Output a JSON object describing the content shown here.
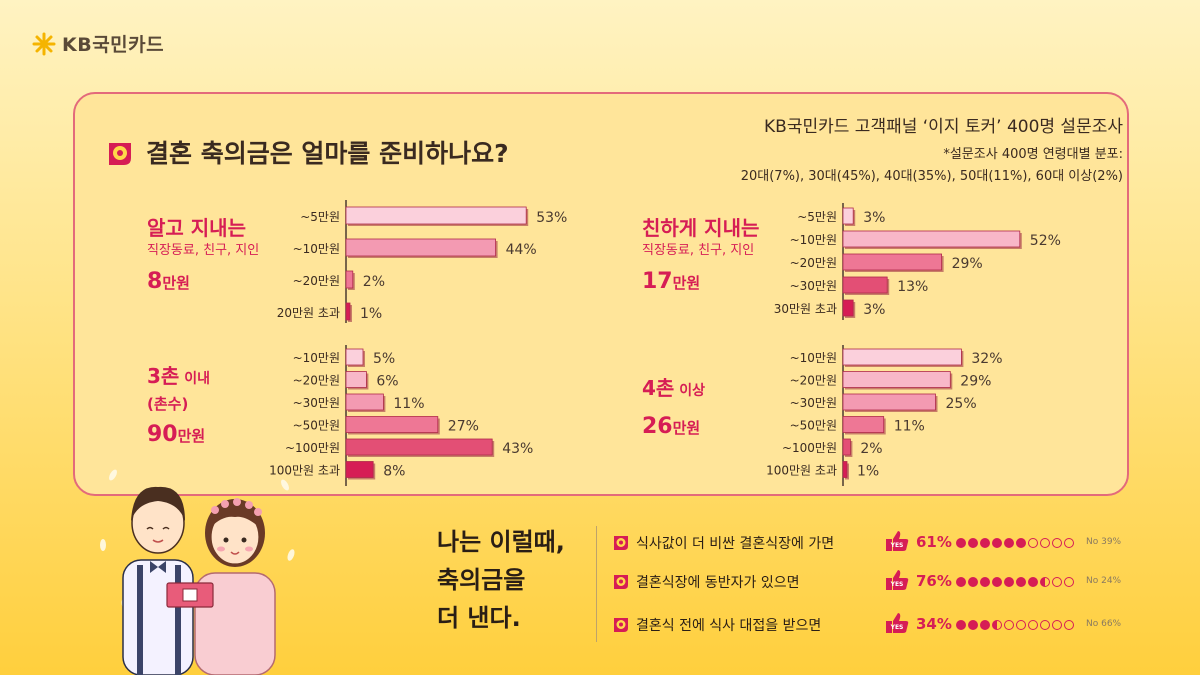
{
  "brand": {
    "name": "KB국민카드"
  },
  "header": {
    "title": "결혼 축의금은 얼마를 준비하나요?",
    "survey_title": "KB국민카드 고객패널 ‘이지 토커’ 400명 설문조사",
    "survey_note": "*설문조사 400명 연령대별 분포:",
    "survey_dist": "20대(7%), 30대(45%), 40대(35%), 50대(11%), 60대 이상(2%)"
  },
  "groups": [
    {
      "main": "알고 지내는",
      "sub": "직장동료, 친구, 지인",
      "amount": "8",
      "unit": "만원"
    },
    {
      "main": "친하게 지내는",
      "sub": "직장동료, 친구, 지인",
      "amount": "17",
      "unit": "만원"
    },
    {
      "main": "3촌",
      "main_small": " 이내",
      "sub": "(촌수)",
      "amount": "90",
      "unit": "만원"
    },
    {
      "main": "4촌",
      "main_small": " 이상",
      "sub": "",
      "amount": "26",
      "unit": "만원"
    }
  ],
  "chart_data": [
    {
      "type": "bar",
      "group": "알고 지내는 직장동료, 친구, 지인",
      "categories": [
        "~5만원",
        "~10만원",
        "~20만원",
        "20만원 초과"
      ],
      "values": [
        53,
        44,
        2,
        1
      ],
      "unit": "%"
    },
    {
      "type": "bar",
      "group": "친하게 지내는 직장동료, 친구, 지인",
      "categories": [
        "~5만원",
        "~10만원",
        "~20만원",
        "~30만원",
        "30만원 초과"
      ],
      "values": [
        3,
        52,
        29,
        13,
        3
      ],
      "unit": "%"
    },
    {
      "type": "bar",
      "group": "3촌 이내 (촌수)",
      "categories": [
        "~10만원",
        "~20만원",
        "~30만원",
        "~50만원",
        "~100만원",
        "100만원 초과"
      ],
      "values": [
        5,
        6,
        11,
        27,
        43,
        8
      ],
      "unit": "%"
    },
    {
      "type": "bar",
      "group": "4촌 이상",
      "categories": [
        "~10만원",
        "~20만원",
        "~30만원",
        "~50만원",
        "~100만원",
        "100만원 초과"
      ],
      "values": [
        32,
        29,
        25,
        11,
        2,
        1
      ],
      "unit": "%"
    }
  ],
  "bottom": {
    "headline": [
      "나는 이럴때,",
      "축의금을",
      "더 낸다."
    ],
    "items": [
      {
        "text": "식사값이 더 비싼 결혼식장에 가면",
        "yes_label": "YES",
        "yes": "61%",
        "no": "No 39%",
        "yes_value": 61
      },
      {
        "text": "결혼식장에 동반자가 있으면",
        "yes_label": "YES",
        "yes": "76%",
        "no": "No 24%",
        "yes_value": 76
      },
      {
        "text": "결혼식 전에 식사 대접을 받으면",
        "yes_label": "YES",
        "yes": "34%",
        "no": "No 66%",
        "yes_value": 34
      }
    ]
  },
  "colors": {
    "accent": "#d61d55",
    "bar_light": "#f8b7c8",
    "bar_mid": "#ee7795",
    "bar_dark": "#d61d55",
    "border": "#e36a7b",
    "panel": "#ffe59a"
  }
}
